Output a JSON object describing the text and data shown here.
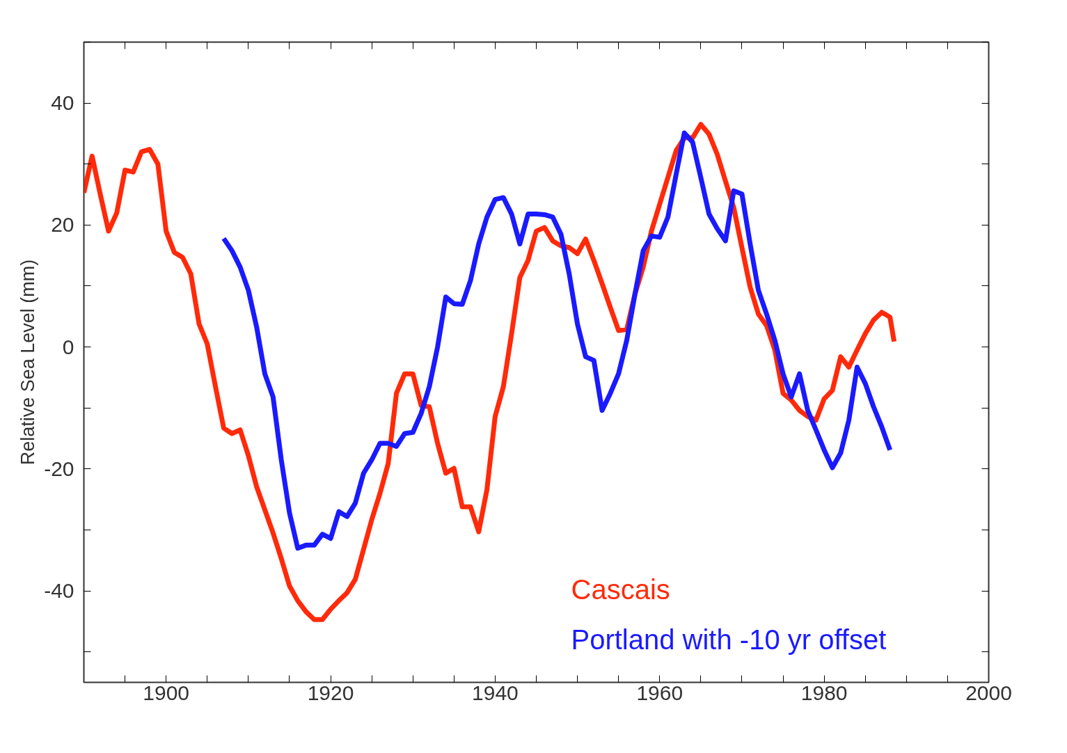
{
  "chart_data": {
    "type": "line",
    "ylabel": "Relative Sea Level (mm)",
    "xlim": [
      1890,
      2000
    ],
    "ylim": [
      -55,
      50
    ],
    "xticks": [
      {
        "value": 1890,
        "label": null
      },
      {
        "value": 1895,
        "label": null
      },
      1900,
      {
        "value": 1905,
        "label": null
      },
      {
        "value": 1910,
        "label": null
      },
      {
        "value": 1915,
        "label": null
      },
      1920,
      {
        "value": 1925,
        "label": null
      },
      {
        "value": 1930,
        "label": null
      },
      {
        "value": 1935,
        "label": null
      },
      1940,
      {
        "value": 1945,
        "label": null
      },
      {
        "value": 1950,
        "label": null
      },
      {
        "value": 1955,
        "label": null
      },
      1960,
      {
        "value": 1965,
        "label": null
      },
      {
        "value": 1970,
        "label": null
      },
      {
        "value": 1975,
        "label": null
      },
      1980,
      {
        "value": 1985,
        "label": null
      },
      {
        "value": 1990,
        "label": null
      },
      {
        "value": 1995,
        "label": null
      },
      2000
    ],
    "yticks": [
      {
        "value": -50,
        "label": null
      },
      -40,
      {
        "value": -30,
        "label": null
      },
      -20,
      {
        "value": -10,
        "label": null
      },
      0,
      {
        "value": 10,
        "label": null
      },
      20,
      {
        "value": 30,
        "label": null
      },
      40,
      {
        "value": 50,
        "label": null
      }
    ],
    "grid": false,
    "legend": "bottom right",
    "marker": "none",
    "line_style": "solid",
    "series": [
      {
        "name": "Cascais",
        "color": "#ff2a0a",
        "x": [
          1890,
          1891,
          1892,
          1893,
          1894,
          1895,
          1896,
          1897,
          1898,
          1899,
          1900,
          1901,
          1902,
          1903,
          1904,
          1905,
          1906,
          1907,
          1908,
          1909,
          1910,
          1911,
          1912,
          1913,
          1914,
          1915,
          1916,
          1917,
          1918,
          1919,
          1920,
          1921,
          1922,
          1923,
          1924,
          1925,
          1926,
          1927,
          1928,
          1929,
          1930,
          1931,
          1932,
          1933,
          1934,
          1935,
          1936,
          1937,
          1938,
          1939,
          1940,
          1941,
          1942,
          1943,
          1944,
          1945,
          1946,
          1947,
          1948,
          1949,
          1950,
          1951,
          1952,
          1953,
          1954,
          1955,
          1956,
          1957,
          1958,
          1959,
          1960,
          1961,
          1962,
          1963,
          1964,
          1965,
          1966,
          1967,
          1968,
          1969,
          1970,
          1971,
          1972,
          1973,
          1974,
          1975,
          1976,
          1977,
          1978,
          1979,
          1980,
          1981,
          1982,
          1983,
          1984,
          1985,
          1986,
          1987,
          1988,
          1988.5
        ],
        "values": [
          25.3,
          31.3,
          25,
          19,
          22,
          29,
          28.7,
          32,
          32.4,
          30,
          19,
          15.5,
          14.7,
          12,
          3.8,
          0.5,
          -6.5,
          -13.3,
          -14.2,
          -13.6,
          -17.8,
          -22.9,
          -26.7,
          -30.5,
          -34.7,
          -39.2,
          -41.6,
          -43.4,
          -44.7,
          -44.7,
          -43,
          -41.6,
          -40.3,
          -38.1,
          -33.2,
          -28.3,
          -24,
          -19.1,
          -7.6,
          -4.4,
          -4.4,
          -9.6,
          -9.8,
          -15.8,
          -20.7,
          -19.9,
          -26.2,
          -26.2,
          -30.3,
          -23.4,
          -11.4,
          -6.5,
          2.2,
          11.4,
          14.2,
          19,
          19.6,
          17.4,
          16.6,
          16.3,
          15.3,
          17.7,
          14.2,
          10.4,
          6.5,
          2.7,
          2.9,
          8.7,
          13.1,
          19,
          23.4,
          27.8,
          32.2,
          34.3,
          34.3,
          36.5,
          34.9,
          31.6,
          27.2,
          22.9,
          16.3,
          9.8,
          5.4,
          3.5,
          -0.5,
          -7.6,
          -8.7,
          -10.4,
          -11.4,
          -12,
          -8.5,
          -7.1,
          -1.6,
          -3.3,
          -0.5,
          2.2,
          4.4,
          5.7,
          4.9,
          0.9
        ]
      },
      {
        "name": "Portland  with -10 yr offset",
        "color": "#1a1aff",
        "x": [
          1907,
          1908,
          1909,
          1910,
          1911,
          1912,
          1913,
          1914,
          1915,
          1916,
          1917,
          1918,
          1919,
          1920,
          1921,
          1922,
          1923,
          1924,
          1925,
          1926,
          1927,
          1928,
          1929,
          1930,
          1931,
          1932,
          1933,
          1934,
          1935,
          1936,
          1937,
          1938,
          1939,
          1940,
          1941,
          1942,
          1943,
          1944,
          1945,
          1946,
          1947,
          1948,
          1949,
          1950,
          1951,
          1952,
          1953,
          1954,
          1955,
          1956,
          1957,
          1958,
          1959,
          1960,
          1961,
          1962,
          1963,
          1964,
          1965,
          1966,
          1967,
          1968,
          1969,
          1970,
          1971,
          1972,
          1973,
          1974,
          1975,
          1976,
          1977,
          1978,
          1979,
          1980,
          1981,
          1982,
          1983,
          1984,
          1985,
          1986,
          1987,
          1988
        ],
        "values": [
          17.8,
          15.8,
          13.1,
          9.3,
          3.3,
          -4.4,
          -8.2,
          -18.5,
          -27.2,
          -33,
          -32.5,
          -32.5,
          -30.7,
          -31.4,
          -27,
          -27.8,
          -25.6,
          -20.7,
          -18.5,
          -15.8,
          -15.8,
          -16.3,
          -14.2,
          -14,
          -10.9,
          -6.5,
          0,
          8.2,
          7.1,
          7,
          10.9,
          16.9,
          21.3,
          24.2,
          24.5,
          21.8,
          16.9,
          21.8,
          21.8,
          21.7,
          21.3,
          18.5,
          12,
          3.8,
          -1.6,
          -2.2,
          -10.4,
          -7.6,
          -4.4,
          1.1,
          8.7,
          15.8,
          18.2,
          18,
          21.3,
          28.3,
          35.1,
          33.6,
          27.8,
          21.8,
          19.4,
          17.4,
          25.6,
          25.1,
          16.9,
          9.3,
          5.4,
          1.1,
          -4.4,
          -8.2,
          -4.4,
          -10.4,
          -13.6,
          -16.9,
          -19.8,
          -17.4,
          -12,
          -3.3,
          -6,
          -9.8,
          -13.1,
          -16.9
        ]
      }
    ]
  }
}
